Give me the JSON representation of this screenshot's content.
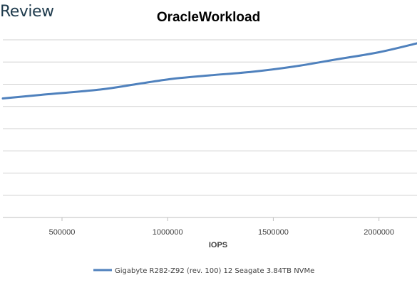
{
  "brand": "Review",
  "chart_data": {
    "type": "line",
    "title": "OracleWorkload",
    "xlabel": "IOPS",
    "ylabel": "",
    "xlim": [
      220000,
      2180000
    ],
    "ylim": [
      0,
      1
    ],
    "y_gridlines": [
      0.0,
      0.125,
      0.25,
      0.375,
      0.5,
      0.625,
      0.75,
      0.875,
      1.0
    ],
    "x_ticks": [
      500000,
      1000000,
      1500000,
      2000000
    ],
    "x_tick_labels": [
      "500000",
      "1000000",
      "1500000",
      "2000000"
    ],
    "grid": true,
    "legend_position": "bottom",
    "series": [
      {
        "name": "Gigabyte R282-Z92 (rev. 100) 12 Seagate 3.84TB NVMe",
        "color": "#4f81bd",
        "x": [
          220000,
          400000,
          680000,
          850000,
          1020000,
          1200000,
          1400000,
          1600000,
          1800000,
          2000000,
          2180000
        ],
        "y": [
          0.67,
          0.69,
          0.72,
          0.75,
          0.78,
          0.8,
          0.82,
          0.85,
          0.89,
          0.93,
          0.98
        ]
      }
    ]
  }
}
